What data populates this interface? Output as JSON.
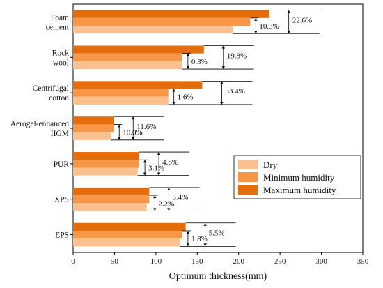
{
  "chart_data": {
    "type": "bar",
    "orientation": "horizontal",
    "categories": [
      "EPS",
      "XPS",
      "PUR",
      "Aerogel-enhanced IIGM",
      "Centrifugal cotton",
      "Rock wool",
      "Foam cement"
    ],
    "category_lines": [
      [
        "EPS"
      ],
      [
        "XPS"
      ],
      [
        "PUR"
      ],
      [
        "Aerogel-enhanced",
        "IIGM"
      ],
      [
        "Centrifugal",
        "cotton"
      ],
      [
        "Rock",
        "wool"
      ],
      [
        "Foam",
        "cement"
      ]
    ],
    "series": [
      {
        "name": "Dry",
        "color": "#FAC08F",
        "values": [
          129,
          89,
          78,
          46,
          115,
          132,
          193
        ]
      },
      {
        "name": "Minimum humidity",
        "color": "#F79646",
        "values": [
          132,
          92,
          80,
          49,
          115,
          132,
          214
        ]
      },
      {
        "name": "Maximum humidity",
        "color": "#E46C0A",
        "values": [
          136,
          92,
          80,
          49,
          156,
          158,
          237
        ]
      }
    ],
    "annotations": {
      "small": [
        "1.8%",
        "2.2%",
        "3.1%",
        "10.0%",
        "1.6%",
        "0.3%",
        "10.3%"
      ],
      "large": [
        "5.5%",
        "3.4%",
        "4.6%",
        "11.6%",
        "33.4%",
        "19.8%",
        "22.6%"
      ]
    },
    "xlabel": "Optimum thickness(mm)",
    "ylabel": "",
    "xlim": [
      0,
      350
    ],
    "xticks": [
      "0",
      "50",
      "100",
      "150",
      "200",
      "250",
      "300",
      "350"
    ],
    "grid": false,
    "legend_position": "lower-right"
  }
}
